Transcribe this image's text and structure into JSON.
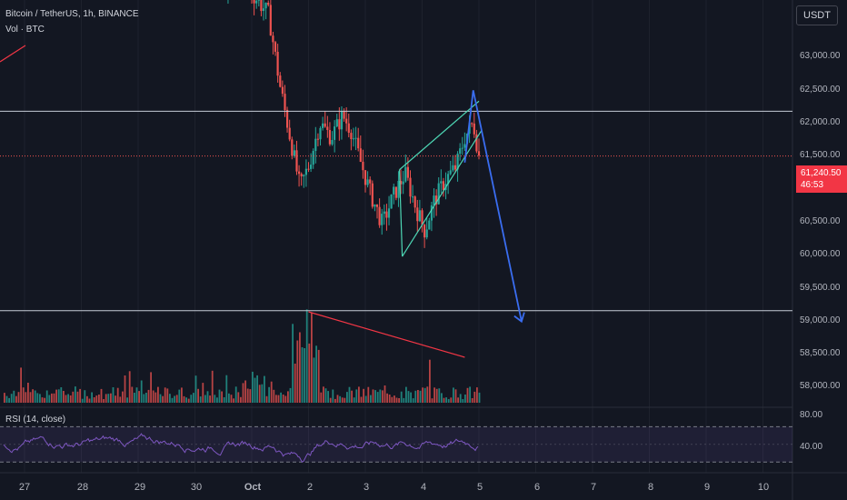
{
  "header": {
    "symbol_title": "Bitcoin / TetherUS, 1h, BINANCE",
    "volume_label": "Vol · BTC"
  },
  "price_scale": {
    "currency": "USDT",
    "labels": [
      "63,000.00",
      "62,500.00",
      "62,000.00",
      "61,500.00",
      "60,500.00",
      "60,000.00",
      "59,500.00",
      "59,000.00",
      "58,500.00",
      "58,000.00"
    ],
    "last_price": "61,240.50",
    "countdown": "46:53"
  },
  "rsi": {
    "label": "RSI (14, close)",
    "ticks": [
      "80.00",
      "40.00"
    ]
  },
  "time_axis": {
    "labels": [
      "27",
      "28",
      "29",
      "30",
      "Oct",
      "2",
      "3",
      "4",
      "5",
      "6",
      "7",
      "8",
      "9",
      "10"
    ]
  },
  "colors": {
    "background": "#131722",
    "up": "#26a69a",
    "down": "#ef5350",
    "horizontal_line": "#c5cbd6",
    "channel": "#4dd6b4",
    "projection": "#3a6df0",
    "trendline": "#f23645",
    "rsi_line": "#7e57c2"
  },
  "chart_data": {
    "type": "candlestick",
    "price_ylim": [
      57800,
      63400
    ],
    "x_dates": [
      "Sep 27",
      "Sep 28",
      "Sep 29",
      "Sep 30",
      "Oct 1",
      "Oct 2",
      "Oct 3",
      "Oct 4",
      "Oct 5",
      "Oct 6",
      "Oct 7",
      "Oct 8",
      "Oct 9",
      "Oct 10"
    ],
    "horizontal_levels": [
      61860,
      59100
    ],
    "last_price": 61240.5,
    "price_path": [
      [
        30.5,
        63600
      ],
      [
        30.8,
        63800
      ],
      [
        31.0,
        63500
      ],
      [
        31.3,
        63200
      ],
      [
        31.5,
        62200
      ],
      [
        31.7,
        61400
      ],
      [
        31.85,
        60800
      ],
      [
        32.0,
        61100
      ],
      [
        32.2,
        61700
      ],
      [
        32.4,
        61500
      ],
      [
        32.6,
        61800
      ],
      [
        32.75,
        61600
      ],
      [
        32.9,
        61200
      ],
      [
        33.1,
        60700
      ],
      [
        33.3,
        60300
      ],
      [
        33.5,
        60700
      ],
      [
        33.7,
        61000
      ],
      [
        33.9,
        60500
      ],
      [
        34.05,
        60200
      ],
      [
        34.2,
        60600
      ],
      [
        34.4,
        60900
      ],
      [
        34.6,
        61100
      ],
      [
        34.75,
        61500
      ],
      [
        34.9,
        61700
      ],
      [
        35.0,
        61240
      ]
    ],
    "rising_channel": {
      "upper": [
        [
          33.6,
          61050
        ],
        [
          35.0,
          62000
        ]
      ],
      "lower": [
        [
          33.65,
          59850
        ],
        [
          35.05,
          61600
        ]
      ]
    },
    "projection": [
      [
        34.75,
        61150
      ],
      [
        34.9,
        62150
      ],
      [
        35.75,
        58950
      ]
    ],
    "volume_trendline": [
      [
        32.0,
        1.0
      ],
      [
        34.75,
        0.5
      ]
    ],
    "rsi_ylim": [
      20,
      90
    ],
    "rsi_levels": [
      70,
      30
    ]
  }
}
